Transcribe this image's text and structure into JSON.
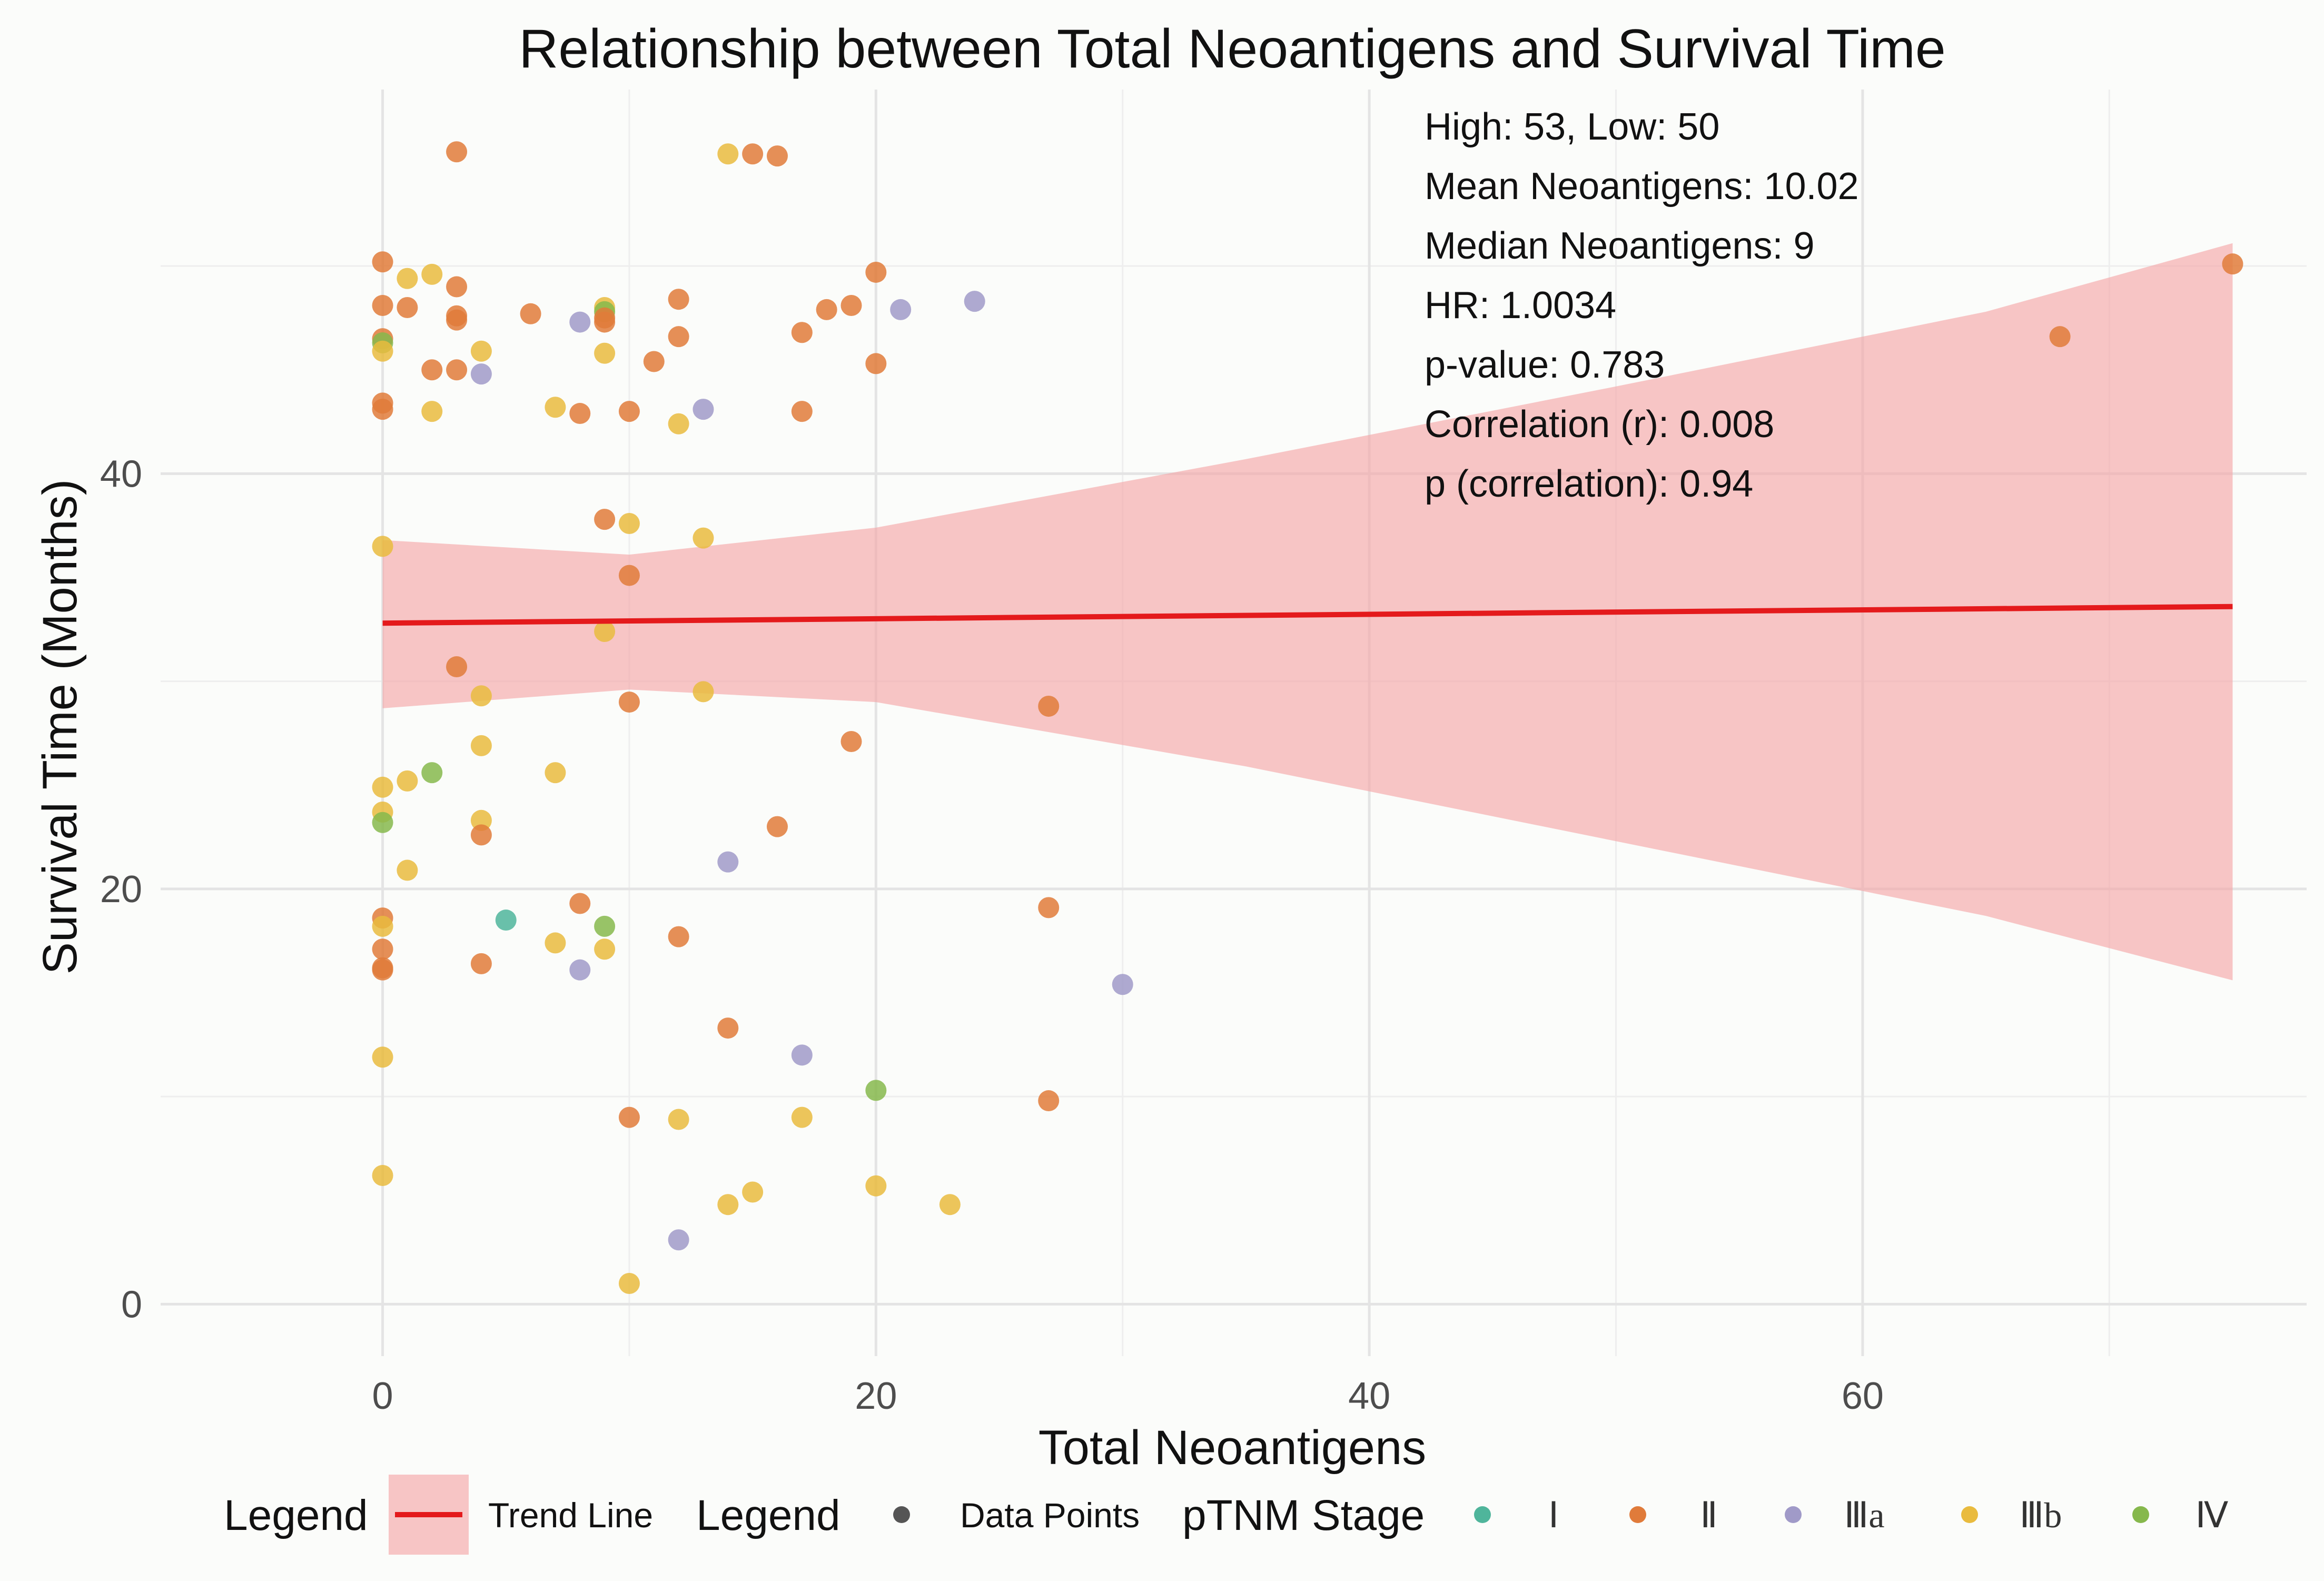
{
  "chart_data": {
    "type": "scatter",
    "title": "Relationship between Total Neoantigens and Survival Time",
    "xlabel": "Total Neoantigens",
    "ylabel": "Survival Time (Months)",
    "xlim": [
      -9,
      78
    ],
    "ylim": [
      -2.5,
      58.5
    ],
    "xticks": [
      0,
      20,
      40,
      60
    ],
    "yticks": [
      0,
      20,
      40
    ],
    "xminor": [
      10,
      30,
      50,
      70
    ],
    "yminor": [
      10,
      30,
      50
    ],
    "annotations": [
      "High: 53, Low: 50",
      "Mean Neoantigens: 10.02",
      "Median Neoantigens: 9",
      "HR: 1.0034",
      "p-value: 0.783",
      "Correlation (r): 0.008",
      "p (correlation): 0.94"
    ],
    "trend_line": {
      "name": "Trend Line",
      "x": [
        0,
        75
      ],
      "y": [
        32.8,
        33.6
      ],
      "color": "#e41a1c",
      "band_color": "#f4a3a5",
      "band_upper": [
        [
          0,
          36.8
        ],
        [
          10,
          36.1
        ],
        [
          20,
          37.4
        ],
        [
          35,
          40.7
        ],
        [
          50,
          44.2
        ],
        [
          65,
          47.8
        ],
        [
          75,
          51.1
        ]
      ],
      "band_lower": [
        [
          75,
          15.6
        ],
        [
          65,
          18.7
        ],
        [
          50,
          22.3
        ],
        [
          35,
          25.9
        ],
        [
          20,
          29.0
        ],
        [
          10,
          29.6
        ],
        [
          0,
          28.7
        ]
      ]
    },
    "legend": {
      "position": "bottom",
      "trend_title": "Legend",
      "trend_label": "Trend Line",
      "points_title": "Legend",
      "points_label": "Data Points",
      "points_color": "#555555",
      "stage_title": "pTNM Stage",
      "stages": [
        {
          "label": "Ⅰ",
          "color": "#4fb59b"
        },
        {
          "label": "Ⅱ",
          "color": "#e07b3a"
        },
        {
          "label": "Ⅲa",
          "color": "#a09ac8"
        },
        {
          "label": "Ⅲb",
          "color": "#e9bb3e"
        },
        {
          "label": "Ⅳ",
          "color": "#86b84c"
        }
      ]
    },
    "points": [
      {
        "x": 0,
        "y": 50.2,
        "stage": "Ⅱ"
      },
      {
        "x": 0,
        "y": 48.1,
        "stage": "Ⅱ"
      },
      {
        "x": 0,
        "y": 46.5,
        "stage": "Ⅱ"
      },
      {
        "x": 0,
        "y": 46.3,
        "stage": "Ⅳ"
      },
      {
        "x": 0,
        "y": 45.9,
        "stage": "Ⅲb"
      },
      {
        "x": 0,
        "y": 43.4,
        "stage": "Ⅱ"
      },
      {
        "x": 0,
        "y": 43.1,
        "stage": "Ⅱ"
      },
      {
        "x": 0,
        "y": 36.5,
        "stage": "Ⅲb"
      },
      {
        "x": 0,
        "y": 24.9,
        "stage": "Ⅲb"
      },
      {
        "x": 0,
        "y": 23.7,
        "stage": "Ⅲb"
      },
      {
        "x": 0,
        "y": 23.2,
        "stage": "Ⅳ"
      },
      {
        "x": 0,
        "y": 18.6,
        "stage": "Ⅱ"
      },
      {
        "x": 0,
        "y": 18.2,
        "stage": "Ⅲb"
      },
      {
        "x": 0,
        "y": 17.1,
        "stage": "Ⅱ"
      },
      {
        "x": 0,
        "y": 16.1,
        "stage": "Ⅱ"
      },
      {
        "x": 0,
        "y": 16.2,
        "stage": "Ⅱ"
      },
      {
        "x": 0,
        "y": 11.9,
        "stage": "Ⅲb"
      },
      {
        "x": 0,
        "y": 6.2,
        "stage": "Ⅲb"
      },
      {
        "x": 1,
        "y": 49.4,
        "stage": "Ⅲb"
      },
      {
        "x": 1,
        "y": 48.0,
        "stage": "Ⅱ"
      },
      {
        "x": 1,
        "y": 25.2,
        "stage": "Ⅲb"
      },
      {
        "x": 1,
        "y": 20.9,
        "stage": "Ⅲb"
      },
      {
        "x": 2,
        "y": 49.6,
        "stage": "Ⅲb"
      },
      {
        "x": 2,
        "y": 45.0,
        "stage": "Ⅱ"
      },
      {
        "x": 2,
        "y": 43.0,
        "stage": "Ⅲb"
      },
      {
        "x": 2,
        "y": 25.6,
        "stage": "Ⅳ"
      },
      {
        "x": 3,
        "y": 55.5,
        "stage": "Ⅱ"
      },
      {
        "x": 3,
        "y": 49.0,
        "stage": "Ⅱ"
      },
      {
        "x": 3,
        "y": 47.4,
        "stage": "Ⅱ"
      },
      {
        "x": 3,
        "y": 47.6,
        "stage": "Ⅱ"
      },
      {
        "x": 3,
        "y": 45.0,
        "stage": "Ⅱ"
      },
      {
        "x": 3,
        "y": 30.7,
        "stage": "Ⅱ"
      },
      {
        "x": 4,
        "y": 45.9,
        "stage": "Ⅲb"
      },
      {
        "x": 4,
        "y": 44.8,
        "stage": "Ⅲa"
      },
      {
        "x": 4,
        "y": 29.3,
        "stage": "Ⅲb"
      },
      {
        "x": 4,
        "y": 26.9,
        "stage": "Ⅲb"
      },
      {
        "x": 4,
        "y": 23.3,
        "stage": "Ⅲb"
      },
      {
        "x": 4,
        "y": 22.6,
        "stage": "Ⅱ"
      },
      {
        "x": 4,
        "y": 16.4,
        "stage": "Ⅱ"
      },
      {
        "x": 5,
        "y": 18.5,
        "stage": "Ⅰ"
      },
      {
        "x": 6,
        "y": 47.7,
        "stage": "Ⅱ"
      },
      {
        "x": 7,
        "y": 43.2,
        "stage": "Ⅲb"
      },
      {
        "x": 7,
        "y": 25.6,
        "stage": "Ⅲb"
      },
      {
        "x": 7,
        "y": 17.4,
        "stage": "Ⅲb"
      },
      {
        "x": 8,
        "y": 47.3,
        "stage": "Ⅲa"
      },
      {
        "x": 8,
        "y": 42.9,
        "stage": "Ⅱ"
      },
      {
        "x": 8,
        "y": 19.3,
        "stage": "Ⅱ"
      },
      {
        "x": 8,
        "y": 16.1,
        "stage": "Ⅲa"
      },
      {
        "x": 9,
        "y": 48.0,
        "stage": "Ⅲb"
      },
      {
        "x": 9,
        "y": 47.8,
        "stage": "Ⅳ"
      },
      {
        "x": 9,
        "y": 47.5,
        "stage": "Ⅱ"
      },
      {
        "x": 9,
        "y": 47.3,
        "stage": "Ⅱ"
      },
      {
        "x": 9,
        "y": 45.8,
        "stage": "Ⅲb"
      },
      {
        "x": 9,
        "y": 37.8,
        "stage": "Ⅱ"
      },
      {
        "x": 9,
        "y": 32.4,
        "stage": "Ⅲb"
      },
      {
        "x": 9,
        "y": 18.2,
        "stage": "Ⅳ"
      },
      {
        "x": 9,
        "y": 17.1,
        "stage": "Ⅲb"
      },
      {
        "x": 10,
        "y": 43.0,
        "stage": "Ⅱ"
      },
      {
        "x": 10,
        "y": 37.6,
        "stage": "Ⅲb"
      },
      {
        "x": 10,
        "y": 35.1,
        "stage": "Ⅱ"
      },
      {
        "x": 10,
        "y": 29.0,
        "stage": "Ⅱ"
      },
      {
        "x": 10,
        "y": 9.0,
        "stage": "Ⅱ"
      },
      {
        "x": 10,
        "y": 1.0,
        "stage": "Ⅲb"
      },
      {
        "x": 11,
        "y": 45.4,
        "stage": "Ⅱ"
      },
      {
        "x": 12,
        "y": 48.4,
        "stage": "Ⅱ"
      },
      {
        "x": 12,
        "y": 46.6,
        "stage": "Ⅱ"
      },
      {
        "x": 12,
        "y": 42.4,
        "stage": "Ⅲb"
      },
      {
        "x": 12,
        "y": 17.7,
        "stage": "Ⅱ"
      },
      {
        "x": 12,
        "y": 8.9,
        "stage": "Ⅲb"
      },
      {
        "x": 12,
        "y": 3.1,
        "stage": "Ⅲa"
      },
      {
        "x": 13,
        "y": 43.1,
        "stage": "Ⅲa"
      },
      {
        "x": 13,
        "y": 36.9,
        "stage": "Ⅲb"
      },
      {
        "x": 13,
        "y": 29.5,
        "stage": "Ⅲb"
      },
      {
        "x": 14,
        "y": 55.4,
        "stage": "Ⅲb"
      },
      {
        "x": 14,
        "y": 21.3,
        "stage": "Ⅲa"
      },
      {
        "x": 14,
        "y": 13.3,
        "stage": "Ⅱ"
      },
      {
        "x": 14,
        "y": 4.8,
        "stage": "Ⅲb"
      },
      {
        "x": 15,
        "y": 55.4,
        "stage": "Ⅱ"
      },
      {
        "x": 15,
        "y": 5.4,
        "stage": "Ⅲb"
      },
      {
        "x": 16,
        "y": 55.3,
        "stage": "Ⅱ"
      },
      {
        "x": 16,
        "y": 23.0,
        "stage": "Ⅱ"
      },
      {
        "x": 17,
        "y": 46.8,
        "stage": "Ⅱ"
      },
      {
        "x": 17,
        "y": 43.0,
        "stage": "Ⅱ"
      },
      {
        "x": 17,
        "y": 12.0,
        "stage": "Ⅲa"
      },
      {
        "x": 17,
        "y": 9.0,
        "stage": "Ⅲb"
      },
      {
        "x": 18,
        "y": 47.9,
        "stage": "Ⅱ"
      },
      {
        "x": 19,
        "y": 48.1,
        "stage": "Ⅱ"
      },
      {
        "x": 19,
        "y": 27.1,
        "stage": "Ⅱ"
      },
      {
        "x": 20,
        "y": 49.7,
        "stage": "Ⅱ"
      },
      {
        "x": 20,
        "y": 45.3,
        "stage": "Ⅱ"
      },
      {
        "x": 20,
        "y": 10.3,
        "stage": "Ⅳ"
      },
      {
        "x": 20,
        "y": 5.7,
        "stage": "Ⅲb"
      },
      {
        "x": 21,
        "y": 47.9,
        "stage": "Ⅲa"
      },
      {
        "x": 23,
        "y": 4.8,
        "stage": "Ⅲb"
      },
      {
        "x": 24,
        "y": 48.3,
        "stage": "Ⅲa"
      },
      {
        "x": 27,
        "y": 28.8,
        "stage": "Ⅱ"
      },
      {
        "x": 27,
        "y": 19.1,
        "stage": "Ⅱ"
      },
      {
        "x": 27,
        "y": 9.8,
        "stage": "Ⅱ"
      },
      {
        "x": 30,
        "y": 15.4,
        "stage": "Ⅲa"
      },
      {
        "x": 68,
        "y": 46.6,
        "stage": "Ⅱ"
      },
      {
        "x": 75,
        "y": 50.1,
        "stage": "Ⅱ"
      }
    ]
  }
}
